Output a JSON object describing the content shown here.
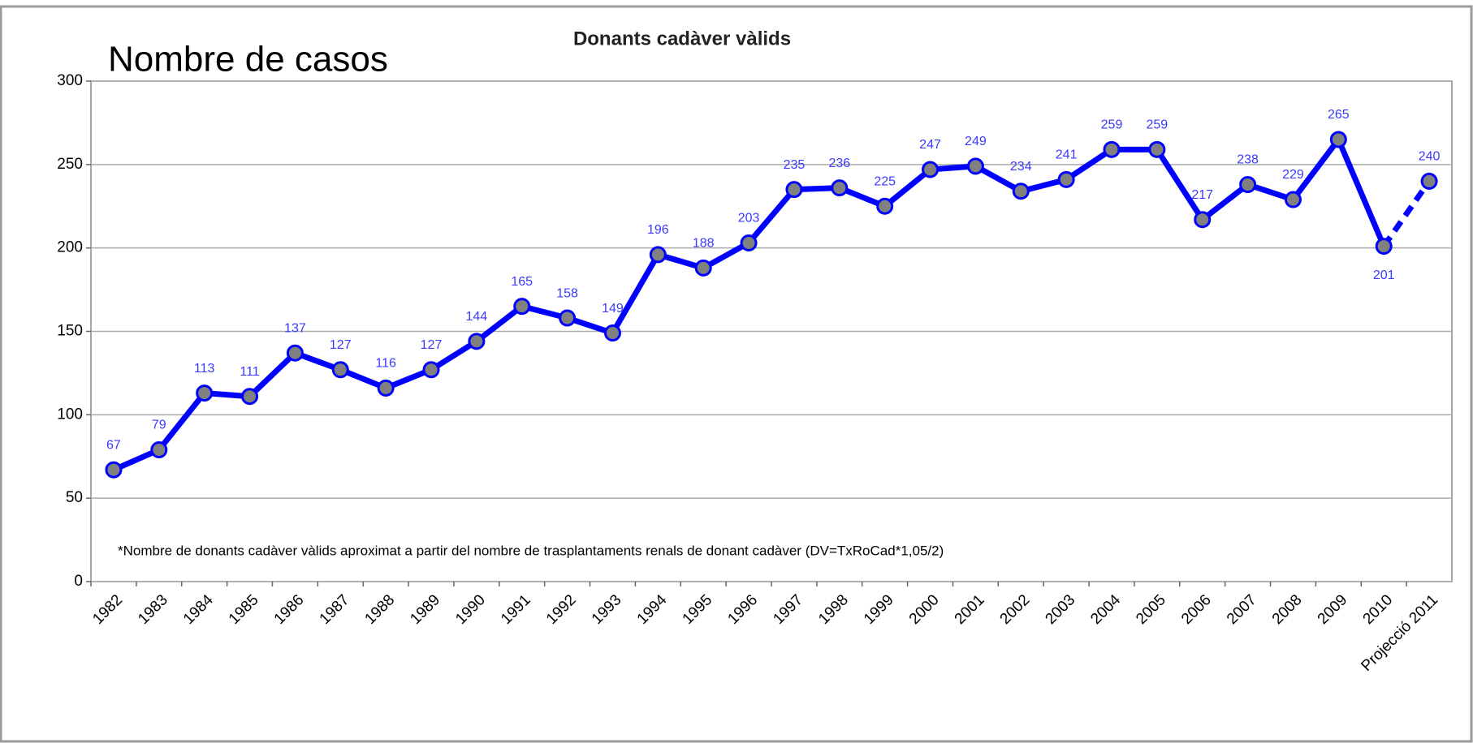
{
  "chart_data": {
    "type": "line",
    "title": "Donants cadàver vàlids",
    "y_label": "Nombre de casos",
    "annotation": "*Nombre de donants cadàver vàlids aproximat a partir del nombre de trasplantaments renals de donant cadàver (DV=TxRoCad*1,05/2)",
    "categories": [
      "1982",
      "1983",
      "1984",
      "1985",
      "1986",
      "1987",
      "1988",
      "1989",
      "1990",
      "1991",
      "1992",
      "1993",
      "1994",
      "1995",
      "1996",
      "1997",
      "1998",
      "1999",
      "2000",
      "2001",
      "2002",
      "2003",
      "2004",
      "2005",
      "2006",
      "2007",
      "2008",
      "2009",
      "2010",
      "Projecció 2011"
    ],
    "values": [
      67,
      79,
      113,
      111,
      137,
      127,
      116,
      127,
      144,
      165,
      158,
      149,
      196,
      188,
      203,
      235,
      236,
      225,
      247,
      249,
      234,
      241,
      259,
      259,
      217,
      238,
      229,
      265,
      201,
      240
    ],
    "color": "#0000ff",
    "marker_color": "#808080",
    "dashed_segments": [
      28
    ],
    "ylim": [
      0,
      300
    ],
    "yticks": [
      0,
      50,
      100,
      150,
      200,
      250,
      300
    ],
    "grid": true
  }
}
